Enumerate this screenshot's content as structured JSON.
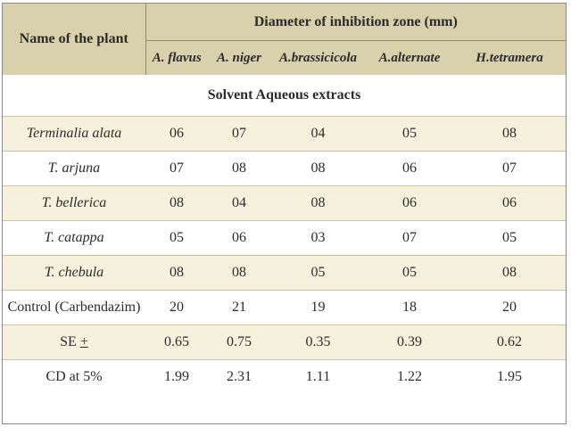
{
  "header": {
    "name_col": "Name of the plant",
    "group": "Diameter of inhibition zone (mm)",
    "species": [
      "A. flavus",
      "A. niger",
      "A.brassicicola",
      "A.alternate",
      "H.tetramera"
    ]
  },
  "section_title": "Solvent Aqueous extracts",
  "rows": [
    {
      "plant": "Terminalia alata",
      "values": [
        "06",
        "07",
        "04",
        "05",
        "08"
      ]
    },
    {
      "plant": "T. arjuna",
      "values": [
        "07",
        "08",
        "08",
        "06",
        "07"
      ]
    },
    {
      "plant": "T. bellerica",
      "values": [
        "08",
        "04",
        "08",
        "06",
        "06"
      ]
    },
    {
      "plant": "T. catappa",
      "values": [
        "05",
        "06",
        "03",
        "07",
        "05"
      ]
    },
    {
      "plant": "T. chebula",
      "values": [
        "08",
        "08",
        "05",
        "05",
        "08"
      ]
    },
    {
      "plant": "Control (Carbendazim)",
      "values": [
        "20",
        "21",
        "19",
        "18",
        "20"
      ]
    },
    {
      "plant": "SE",
      "plant_suffix": "+",
      "values": [
        "0.65",
        "0.75",
        "0.35",
        "0.39",
        "0.62"
      ]
    },
    {
      "plant": "CD at 5%",
      "values": [
        "1.99",
        "2.31",
        "1.11",
        "1.22",
        "1.95"
      ]
    }
  ]
}
